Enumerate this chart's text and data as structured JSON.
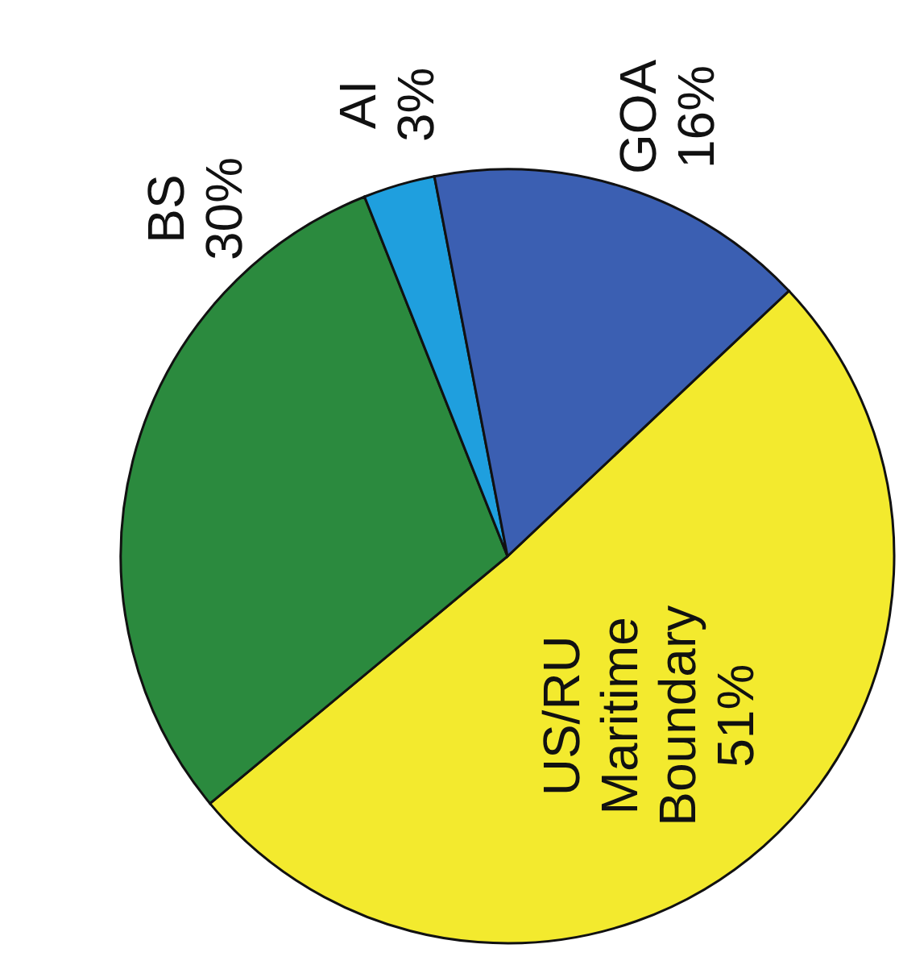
{
  "chart_data": {
    "type": "pie",
    "categories": [
      "US/RU Maritime Boundary",
      "BS",
      "AI",
      "GOA"
    ],
    "values": [
      51,
      30,
      3,
      16
    ],
    "value_labels": [
      "51%",
      "30%",
      "3%",
      "16%"
    ],
    "colors": [
      "#f3ea2e",
      "#2b8a3e",
      "#1f9fde",
      "#3b5fb2"
    ]
  }
}
